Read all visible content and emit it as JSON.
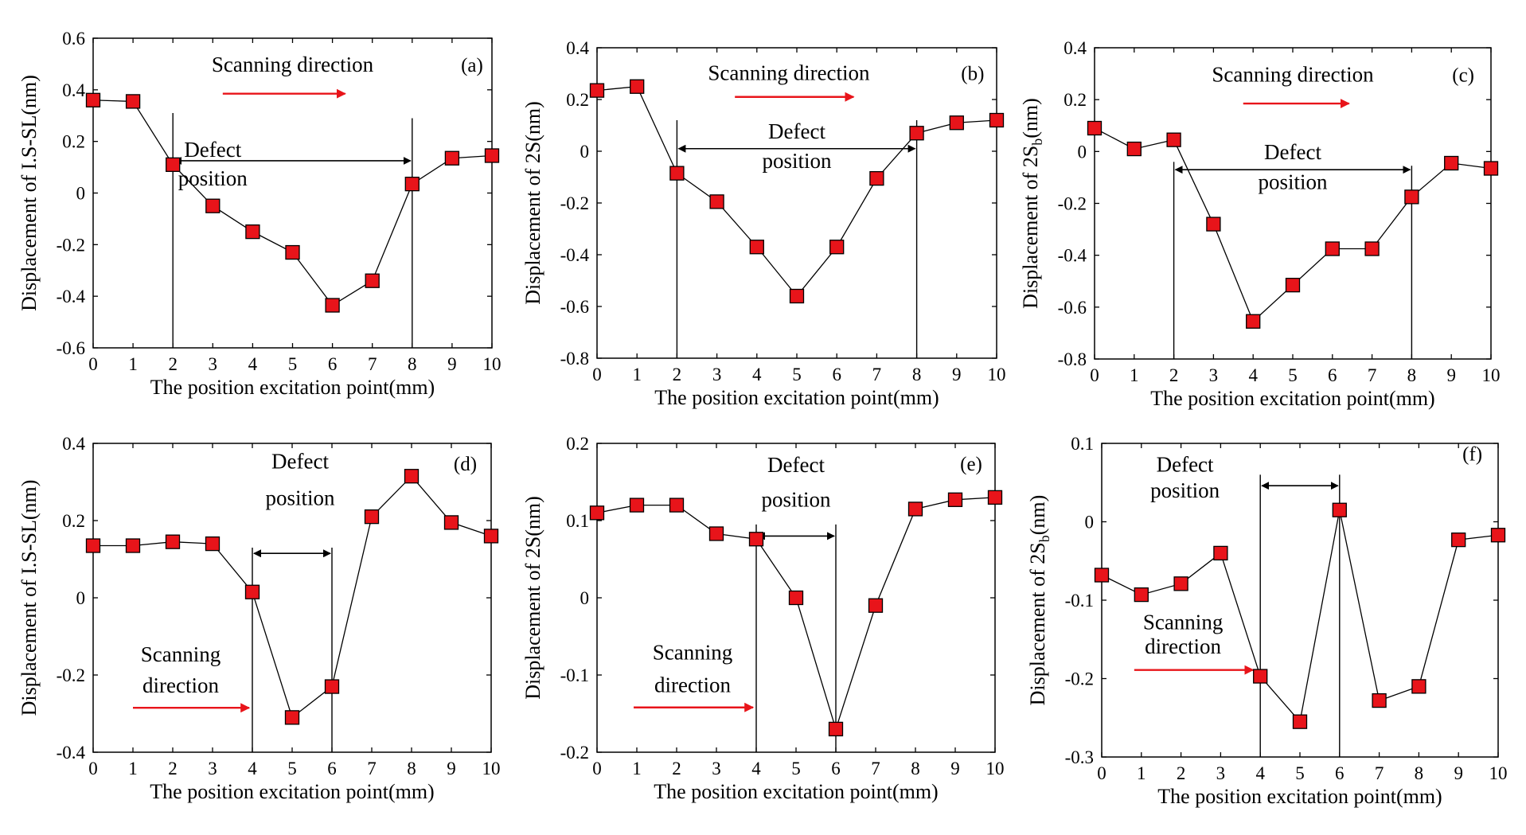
{
  "colors": {
    "marker_fill": "#e8141a",
    "scan_arrow": "#e8141a",
    "axis": "#000000"
  },
  "chart_data": [
    {
      "panel": "(a)",
      "type": "line",
      "xlabel": "The position excitation point(mm)",
      "ylabel": "Displacement of I.S-SL(nm)",
      "x": [
        0,
        1,
        2,
        3,
        4,
        5,
        6,
        7,
        8,
        9,
        10
      ],
      "values": [
        0.36,
        0.355,
        0.11,
        -0.05,
        -0.15,
        -0.23,
        -0.435,
        -0.34,
        0.035,
        0.135,
        0.145
      ],
      "xlim": [
        0,
        10
      ],
      "ylim": [
        -0.6,
        0.6
      ],
      "xticks": [
        "0",
        "1",
        "2",
        "3",
        "4",
        "5",
        "6",
        "7",
        "8",
        "9",
        "10"
      ],
      "yticks": [
        "-0.6",
        "-0.4",
        "-0.2",
        "0",
        "0.2",
        "0.4",
        "0.6"
      ],
      "defect_range": [
        2,
        8
      ],
      "defect_label": [
        "Defect",
        "position"
      ],
      "scanning_label": [
        "Scanning direction"
      ]
    },
    {
      "panel": "(b)",
      "type": "line",
      "xlabel": "The position excitation point(mm)",
      "ylabel": "Displacement of 2S(nm)",
      "x": [
        0,
        1,
        2,
        3,
        4,
        5,
        6,
        7,
        8,
        9,
        10
      ],
      "values": [
        0.235,
        0.25,
        -0.085,
        -0.195,
        -0.37,
        -0.56,
        -0.37,
        -0.105,
        0.07,
        0.11,
        0.12
      ],
      "xlim": [
        0,
        10
      ],
      "ylim": [
        -0.8,
        0.4
      ],
      "xticks": [
        "0",
        "1",
        "2",
        "3",
        "4",
        "5",
        "6",
        "7",
        "8",
        "9",
        "10"
      ],
      "yticks": [
        "-0.8",
        "-0.6",
        "-0.4",
        "-0.2",
        "0",
        "0.2",
        "0.4"
      ],
      "defect_range": [
        2,
        8
      ],
      "defect_label": [
        "Defect",
        "position"
      ],
      "scanning_label": [
        "Scanning direction"
      ]
    },
    {
      "panel": "(c)",
      "type": "line",
      "xlabel": "The position excitation point(mm)",
      "ylabel": "Displacement of 2S",
      "ylabel_subscript": "b",
      "ylabel_suffix": "(nm)",
      "x": [
        0,
        1,
        2,
        3,
        4,
        5,
        6,
        7,
        8,
        9,
        10
      ],
      "values": [
        0.09,
        0.01,
        0.045,
        -0.28,
        -0.655,
        -0.515,
        -0.375,
        -0.375,
        -0.175,
        -0.045,
        -0.065
      ],
      "xlim": [
        0,
        10
      ],
      "ylim": [
        -0.8,
        0.4
      ],
      "xticks": [
        "0",
        "1",
        "2",
        "3",
        "4",
        "5",
        "6",
        "7",
        "8",
        "9",
        "10"
      ],
      "yticks": [
        "-0.8",
        "-0.6",
        "-0.4",
        "-0.2",
        "0",
        "0.2",
        "0.4"
      ],
      "defect_range": [
        2,
        8
      ],
      "defect_label": [
        "Defect",
        "position"
      ],
      "scanning_label": [
        "Scanning direction"
      ]
    },
    {
      "panel": "(d)",
      "type": "line",
      "xlabel": "The position excitation point(mm)",
      "ylabel": "Displacement of I.S-SL(nm)",
      "x": [
        0,
        1,
        2,
        3,
        4,
        5,
        6,
        7,
        8,
        9,
        10
      ],
      "values": [
        0.135,
        0.135,
        0.145,
        0.14,
        0.015,
        -0.31,
        -0.23,
        0.21,
        0.315,
        0.195,
        0.16
      ],
      "xlim": [
        0,
        10
      ],
      "ylim": [
        -0.4,
        0.4
      ],
      "xticks": [
        "0",
        "1",
        "2",
        "3",
        "4",
        "5",
        "6",
        "7",
        "8",
        "9",
        "10"
      ],
      "yticks": [
        "-0.4",
        "-0.2",
        "0",
        "0.2",
        "0.4"
      ],
      "defect_range": [
        4,
        6
      ],
      "defect_label": [
        "Defect",
        "position"
      ],
      "scanning_label": [
        "Scanning",
        "direction"
      ]
    },
    {
      "panel": "(e)",
      "type": "line",
      "xlabel": "The position excitation point(mm)",
      "ylabel": "Displacement of 2S(nm)",
      "x": [
        0,
        1,
        2,
        3,
        4,
        5,
        6,
        7,
        8,
        9,
        10
      ],
      "values": [
        0.11,
        0.12,
        0.12,
        0.083,
        0.076,
        0,
        -0.17,
        -0.01,
        0.115,
        0.127,
        0.13
      ],
      "xlim": [
        0,
        10
      ],
      "ylim": [
        -0.2,
        0.2
      ],
      "xticks": [
        "0",
        "1",
        "2",
        "3",
        "4",
        "5",
        "6",
        "7",
        "8",
        "9",
        "10"
      ],
      "yticks": [
        "-0.2",
        "-0.1",
        "0",
        "0.1",
        "0.2"
      ],
      "defect_range": [
        4,
        6
      ],
      "defect_label": [
        "Defect",
        "position"
      ],
      "scanning_label": [
        "Scanning",
        "direction"
      ]
    },
    {
      "panel": "(f)",
      "type": "line",
      "xlabel": "The position excitation point(mm)",
      "ylabel": "Displacement of 2S",
      "ylabel_subscript": "b",
      "ylabel_suffix": "(nm)",
      "x": [
        0,
        1,
        2,
        3,
        4,
        5,
        6,
        7,
        8,
        9,
        10
      ],
      "values": [
        -0.068,
        -0.093,
        -0.079,
        -0.04,
        -0.197,
        -0.255,
        0.015,
        -0.228,
        -0.21,
        -0.023,
        -0.017
      ],
      "xlim": [
        0,
        10
      ],
      "ylim": [
        -0.3,
        0.1
      ],
      "xticks": [
        "0",
        "1",
        "2",
        "3",
        "4",
        "5",
        "6",
        "7",
        "8",
        "9",
        "10"
      ],
      "yticks": [
        "-0.3",
        "-0.2",
        "-0.1",
        "0",
        "0.1"
      ],
      "defect_range": [
        4,
        6
      ],
      "defect_label": [
        "Defect",
        "position"
      ],
      "scanning_label": [
        "Scanning",
        "direction"
      ]
    }
  ]
}
